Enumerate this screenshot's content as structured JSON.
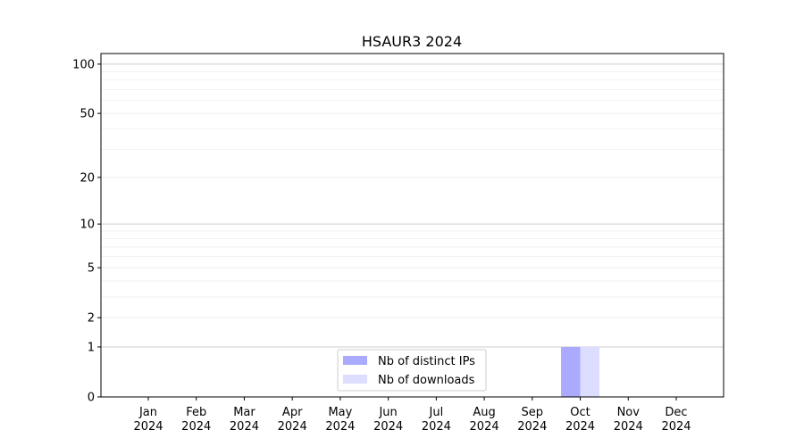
{
  "chart_data": {
    "type": "bar",
    "title": "HSAUR3 2024",
    "xlabel": "",
    "ylabel": "",
    "y_scale": "log(1+y)",
    "ylim": [
      0,
      116
    ],
    "y_ticks": [
      0,
      1,
      2,
      5,
      10,
      20,
      50,
      100
    ],
    "y_tick_labels": [
      "0",
      "1",
      "2",
      "5",
      "10",
      "20",
      "50",
      "100"
    ],
    "grid": "horizontal",
    "legend_position": "bottom-center",
    "categories": [
      "Jan\n2024",
      "Feb\n2024",
      "Mar\n2024",
      "Apr\n2024",
      "May\n2024",
      "Jun\n2024",
      "Jul\n2024",
      "Aug\n2024",
      "Sep\n2024",
      "Oct\n2024",
      "Nov\n2024",
      "Dec\n2024"
    ],
    "category_month": [
      "Jan",
      "Feb",
      "Mar",
      "Apr",
      "May",
      "Jun",
      "Jul",
      "Aug",
      "Sep",
      "Oct",
      "Nov",
      "Dec"
    ],
    "category_year": [
      "2024",
      "2024",
      "2024",
      "2024",
      "2024",
      "2024",
      "2024",
      "2024",
      "2024",
      "2024",
      "2024",
      "2024"
    ],
    "series": [
      {
        "name": "Nb of distinct IPs",
        "color": "#aaaaff",
        "values": [
          0,
          0,
          0,
          0,
          0,
          0,
          0,
          0,
          0,
          1,
          0,
          0
        ]
      },
      {
        "name": "Nb of downloads",
        "color": "#ddddff",
        "values": [
          0,
          0,
          0,
          0,
          0,
          0,
          0,
          0,
          0,
          1,
          0,
          0
        ]
      }
    ]
  }
}
